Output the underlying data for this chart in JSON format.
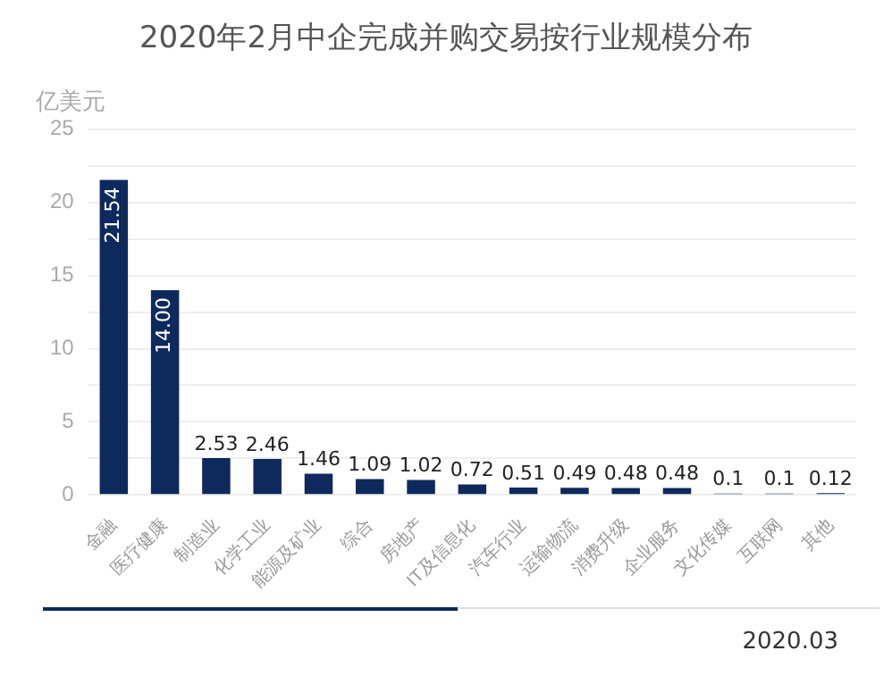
{
  "chart_data": {
    "type": "bar",
    "title": "2020年2月中企完成并购交易按行业规模分布",
    "ylabel": "亿美元",
    "categories": [
      "金融",
      "医疗健康",
      "制造业",
      "化学工业",
      "能源及矿业",
      "综合",
      "房地产",
      "IT及信息化",
      "汽车行业",
      "运输物流",
      "消费升级",
      "企业服务",
      "文化传媒",
      "互联网",
      "其他"
    ],
    "values": [
      21.54,
      14.0,
      2.53,
      2.46,
      1.46,
      1.09,
      1.02,
      0.72,
      0.51,
      0.49,
      0.48,
      0.48,
      0.1,
      0.1,
      0.12
    ],
    "value_labels": [
      "21.54",
      "14.00",
      "2.53",
      "2.46",
      "1.46",
      "1.09",
      "1.02",
      "0.72",
      "0.51",
      "0.49",
      "0.48",
      "0.48",
      "0.1",
      "0.1",
      "0.12"
    ],
    "color": "#0e2a5c",
    "ylim": [
      0,
      25
    ],
    "yticks": [
      0,
      {
        "value": 2.5,
        "label": null
      },
      5,
      {
        "value": 7.5,
        "label": null
      },
      10,
      {
        "value": 12.5,
        "label": null
      },
      15,
      {
        "value": 17.5,
        "label": null
      },
      20,
      {
        "value": 22.5,
        "label": null
      },
      25
    ],
    "grid": "y",
    "annotations": [
      "2020.03"
    ]
  }
}
